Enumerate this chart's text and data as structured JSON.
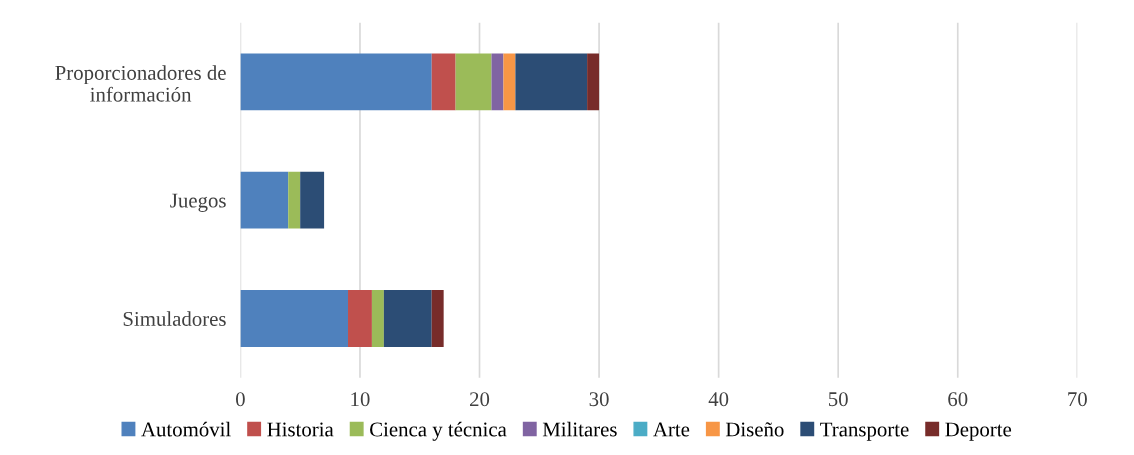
{
  "chart_data": {
    "type": "bar",
    "orientation": "horizontal",
    "stacked": true,
    "categories": [
      "Proporcionadores de\ninformación",
      "Juegos",
      "Simuladores"
    ],
    "series": [
      {
        "name": "Automóvil",
        "color": "#4f81bd",
        "values": [
          16,
          4,
          9
        ]
      },
      {
        "name": "Historia",
        "color": "#c0504d",
        "values": [
          2,
          0,
          2
        ]
      },
      {
        "name": "Cienca y técnica",
        "color": "#9bbb59",
        "values": [
          3,
          1,
          1
        ]
      },
      {
        "name": "Militares",
        "color": "#8064a2",
        "values": [
          1,
          0,
          0
        ]
      },
      {
        "name": "Arte",
        "color": "#4bacc6",
        "values": [
          0,
          0,
          0
        ]
      },
      {
        "name": "Diseño",
        "color": "#f79646",
        "values": [
          1,
          0,
          0
        ]
      },
      {
        "name": "Transporte",
        "color": "#2c4d75",
        "values": [
          6,
          2,
          4
        ]
      },
      {
        "name": "Deporte",
        "color": "#772c2a",
        "values": [
          1,
          0,
          1
        ]
      }
    ],
    "xlim": [
      0,
      70
    ],
    "xticks": [
      0,
      10,
      20,
      30,
      40,
      50,
      60,
      70
    ],
    "grid": "x",
    "legend": "bottom"
  }
}
